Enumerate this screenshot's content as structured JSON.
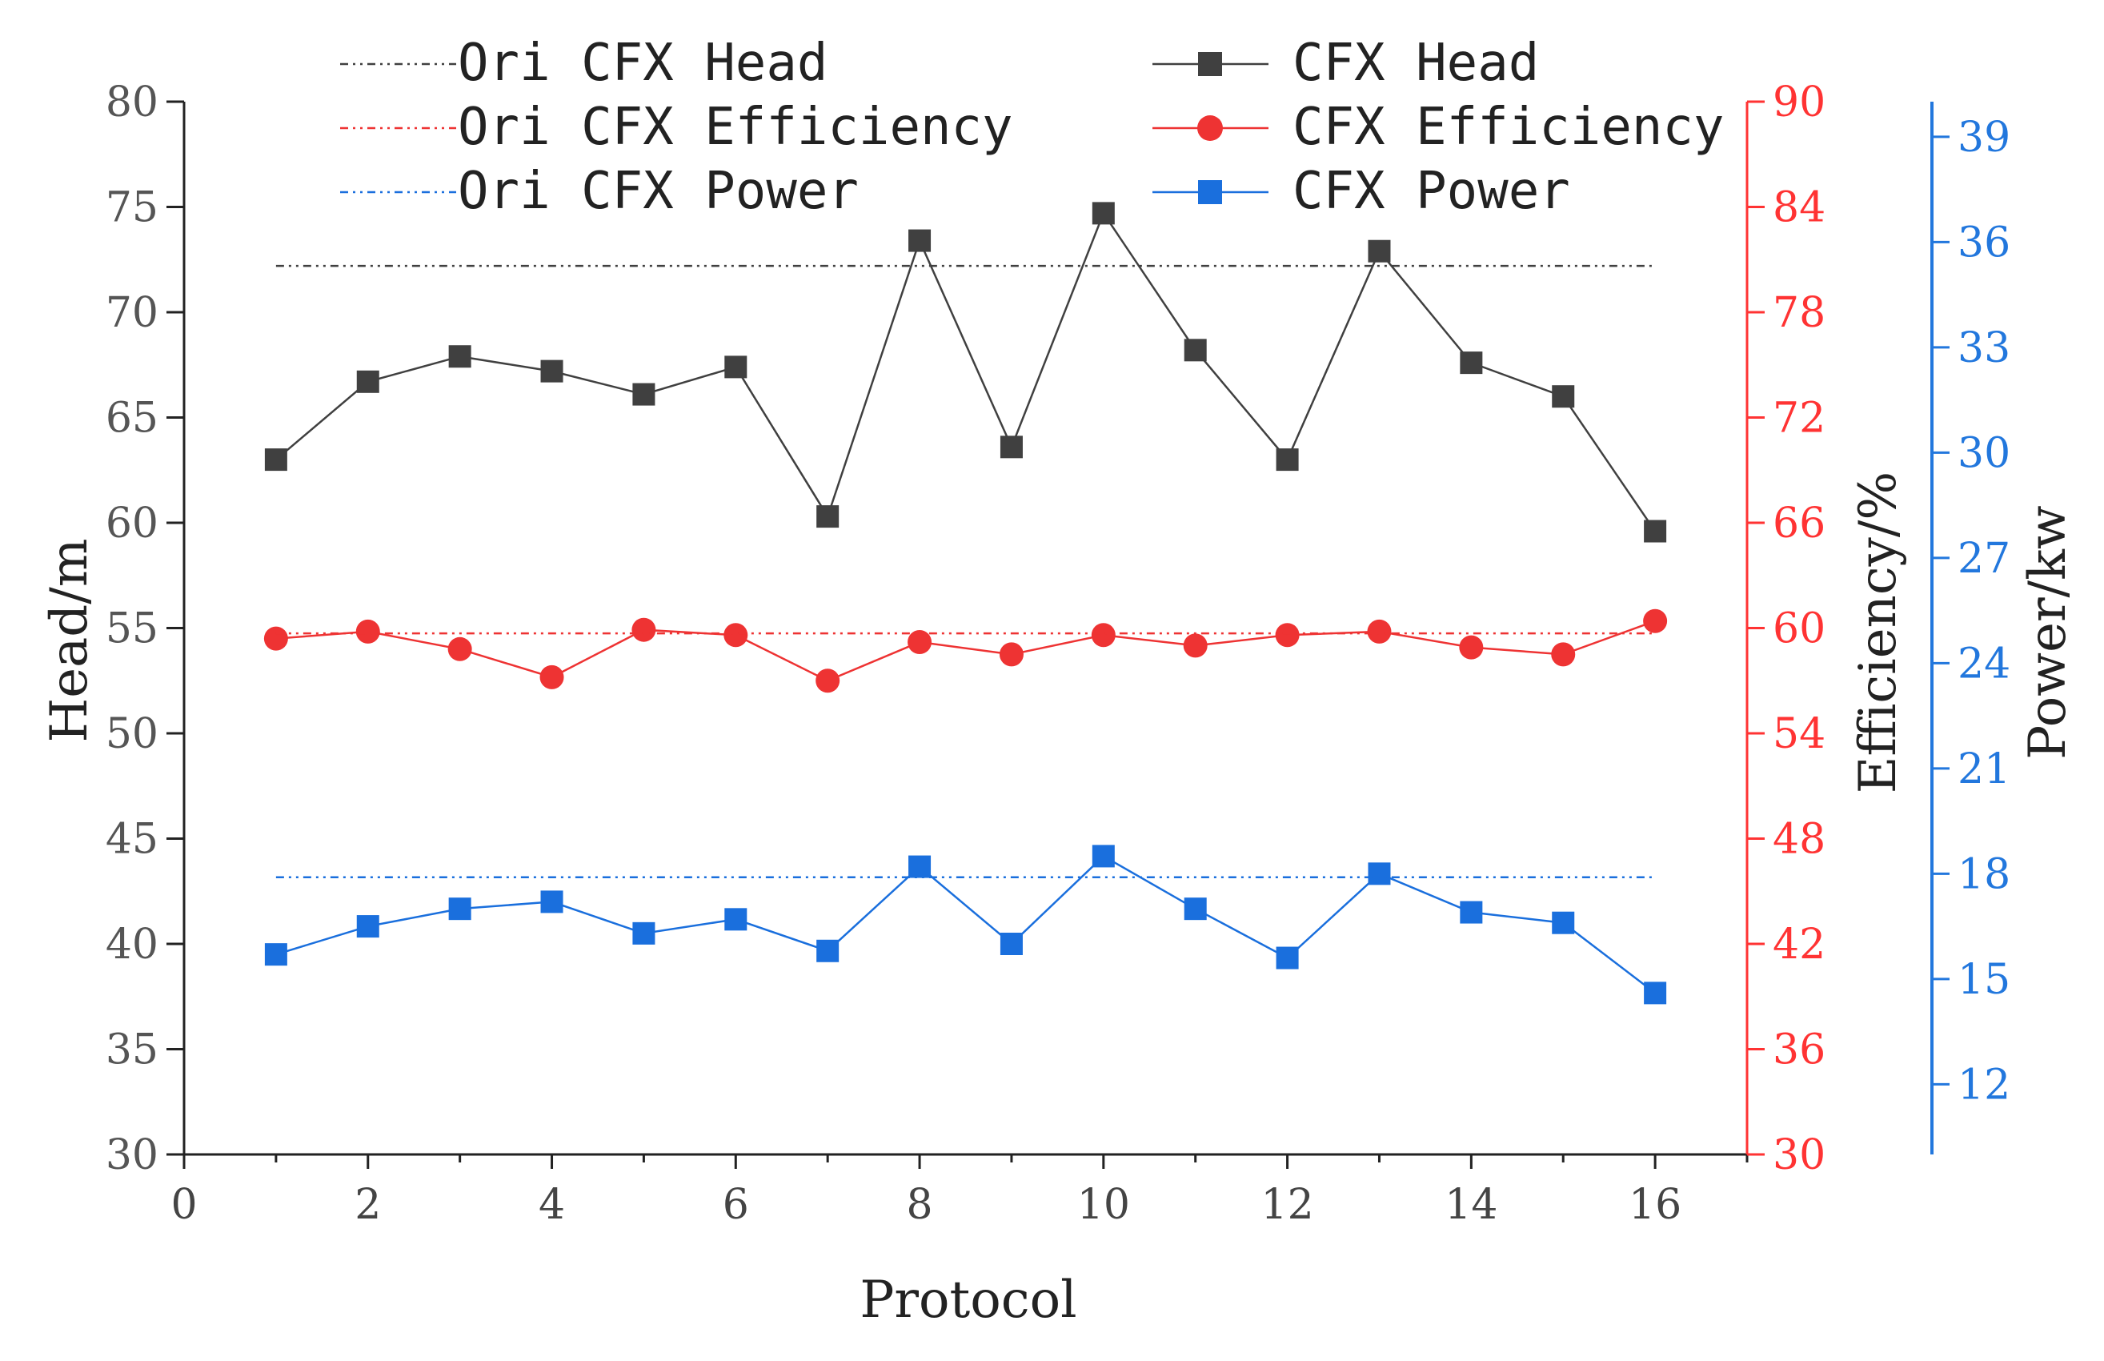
{
  "chart_data": {
    "type": "line",
    "title": "",
    "xlabel": "Protocol",
    "xlim": [
      0,
      17
    ],
    "xticks": [
      0,
      2,
      4,
      6,
      8,
      10,
      12,
      14,
      16
    ],
    "x": [
      1,
      2,
      3,
      4,
      5,
      6,
      7,
      8,
      9,
      10,
      11,
      12,
      13,
      14,
      15,
      16
    ],
    "axes": {
      "head": {
        "label": "Head/m",
        "side": "left",
        "range": [
          30,
          80
        ],
        "ticks": [
          30,
          35,
          40,
          45,
          50,
          55,
          60,
          65,
          70,
          75,
          80
        ],
        "color": "#555555"
      },
      "efficiency": {
        "label": "Efficiency/%",
        "side": "right",
        "range": [
          30,
          90
        ],
        "ticks": [
          30,
          36,
          42,
          48,
          54,
          60,
          66,
          72,
          78,
          84,
          90
        ],
        "color": "#ff3333"
      },
      "power": {
        "label": "Power/kw",
        "side": "far-right",
        "range": [
          10,
          40
        ],
        "ticks": [
          12,
          15,
          18,
          21,
          24,
          27,
          30,
          33,
          36,
          39
        ],
        "color": "#2277dd"
      }
    },
    "series": [
      {
        "name": "CFX Head",
        "axis": "head",
        "color": "#404040",
        "marker": "square",
        "values": [
          63.0,
          66.7,
          67.9,
          67.2,
          66.1,
          67.4,
          60.3,
          73.4,
          63.6,
          74.7,
          68.2,
          63.0,
          72.9,
          67.6,
          66.0,
          59.6
        ]
      },
      {
        "name": "CFX Efficiency",
        "axis": "efficiency",
        "color": "#ee3333",
        "marker": "circle",
        "values": [
          59.4,
          59.8,
          58.8,
          57.2,
          59.9,
          59.6,
          57.0,
          59.2,
          58.5,
          59.6,
          59.0,
          59.6,
          59.8,
          58.9,
          58.5,
          60.4
        ]
      },
      {
        "name": "CFX Power",
        "axis": "power",
        "color": "#1a6fdd",
        "marker": "square",
        "values": [
          15.7,
          16.5,
          17.0,
          17.2,
          16.3,
          16.7,
          15.8,
          18.2,
          16.0,
          18.5,
          17.0,
          15.6,
          18.0,
          16.9,
          16.6,
          14.6
        ]
      },
      {
        "name": "Ori CFX Head",
        "axis": "head",
        "color": "#404040",
        "style": "dash-dot-dot",
        "constant": 72.2
      },
      {
        "name": "Ori CFX Efficiency",
        "axis": "efficiency",
        "color": "#ee3333",
        "style": "dash-dot-dot",
        "constant": 59.7
      },
      {
        "name": "Ori CFX Power",
        "axis": "power",
        "color": "#1a6fdd",
        "style": "dash-dot-dot",
        "constant": 17.9
      }
    ],
    "legend": {
      "placement": "top",
      "left_column": [
        "Ori CFX Head",
        "Ori CFX Efficiency",
        "Ori CFX Power"
      ],
      "right_column": [
        "CFX Head",
        "CFX Efficiency",
        "CFX Power"
      ]
    }
  }
}
